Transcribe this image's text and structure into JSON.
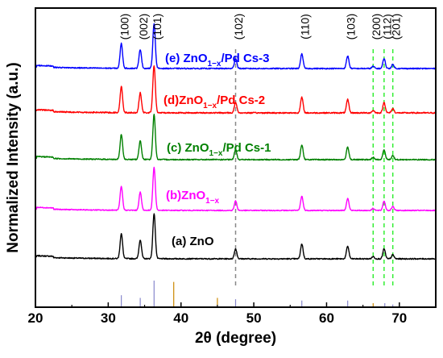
{
  "chart_data": {
    "type": "line",
    "xlabel": "2θ (degree)",
    "ylabel": "Normalized Intensity (a.u.)",
    "xlim": [
      20,
      75
    ],
    "xticks": [
      20,
      30,
      40,
      50,
      60,
      70
    ],
    "grid": false,
    "series": [
      {
        "name": "(a) ZnO",
        "label_parts": [
          "(a) ZnO"
        ],
        "color": "#000000",
        "offset": 0.0,
        "noise": 0.012,
        "scale": 1.0
      },
      {
        "name": "(b)ZnO1−x",
        "label_parts": [
          "(b)ZnO",
          "1−x",
          ""
        ],
        "color": "#ff00ff",
        "offset": 1.0,
        "noise": 0.01,
        "scale": 0.95
      },
      {
        "name": "(c) ZnO1−x/Pd Cs-1",
        "label_parts": [
          "(c) ZnO",
          "1−x",
          "/Pd Cs-1"
        ],
        "color": "#008000",
        "offset": 2.0,
        "noise": 0.012,
        "scale": 1.0
      },
      {
        "name": "(d)ZnO1−x/Pd Cs-2",
        "label_parts": [
          "(d)ZnO",
          "1−x",
          "/Pd Cs-2"
        ],
        "color": "#ff0000",
        "offset": 3.0,
        "noise": 0.014,
        "scale": 1.05
      },
      {
        "name": "(e) ZnO1−x/Pd Cs-3",
        "label_parts": [
          "(e) ZnO",
          "1−x",
          "/Pd Cs-3"
        ],
        "color": "#0000ff",
        "offset": 4.0,
        "noise": 0.012,
        "scale": 1.0
      }
    ],
    "peaks": [
      {
        "label": "(100)",
        "x": 31.8,
        "intensity": 0.55
      },
      {
        "label": "(002)",
        "x": 34.4,
        "intensity": 0.42
      },
      {
        "label": "(101)",
        "x": 36.3,
        "intensity": 1.0
      },
      {
        "label": "(102)",
        "x": 47.5,
        "intensity": 0.22
      },
      {
        "label": "(110)",
        "x": 56.6,
        "intensity": 0.33
      },
      {
        "label": "(103)",
        "x": 62.9,
        "intensity": 0.28
      },
      {
        "label": "(200)",
        "x": 66.4,
        "intensity": 0.05
      },
      {
        "label": "(112)",
        "x": 67.9,
        "intensity": 0.22
      },
      {
        "label": "(201)",
        "x": 69.1,
        "intensity": 0.09
      }
    ],
    "reference_lines": [
      {
        "x": 47.5,
        "style": "dashed",
        "color": "#888888"
      },
      {
        "x": 66.4,
        "style": "dashed",
        "color": "#33ee33"
      },
      {
        "x": 67.9,
        "style": "dashed",
        "color": "#33ee33"
      },
      {
        "x": 69.1,
        "style": "dashed",
        "color": "#33ee33"
      }
    ],
    "reference_sticks": [
      {
        "x": 31.8,
        "height": 0.45,
        "color": "#8888cc"
      },
      {
        "x": 34.4,
        "height": 0.35,
        "color": "#8888cc"
      },
      {
        "x": 36.3,
        "height": 1.0,
        "color": "#8888cc"
      },
      {
        "x": 39.0,
        "height": 0.95,
        "color": "#cc8800"
      },
      {
        "x": 45.0,
        "height": 0.35,
        "color": "#cc8800"
      },
      {
        "x": 47.5,
        "height": 0.3,
        "color": "#8888cc"
      },
      {
        "x": 56.6,
        "height": 0.25,
        "color": "#8888cc"
      },
      {
        "x": 62.9,
        "height": 0.25,
        "color": "#8888cc"
      },
      {
        "x": 66.4,
        "height": 0.15,
        "color": "#cc8800"
      },
      {
        "x": 68.0,
        "height": 0.15,
        "color": "#8888cc"
      },
      {
        "x": 69.1,
        "height": 0.1,
        "color": "#8888cc"
      }
    ]
  }
}
